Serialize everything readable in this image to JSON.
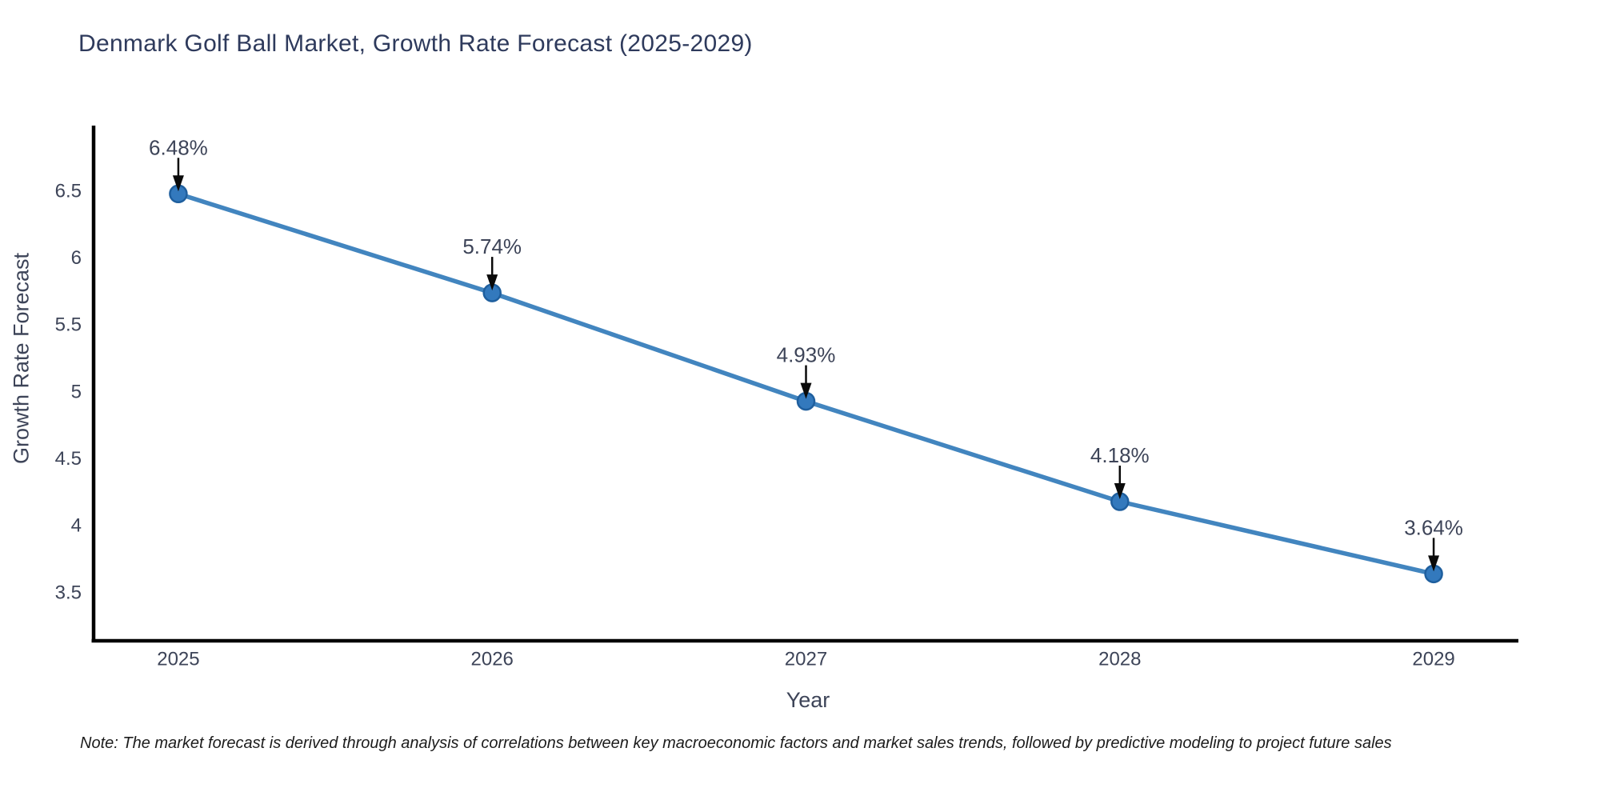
{
  "header": {
    "title": "Denmark Golf Ball Market, Growth Rate Forecast (2025-2029)"
  },
  "footnote": {
    "text": "Note: The market forecast is derived through analysis of correlations between key macroeconomic factors and market sales trends, followed by predictive modeling to project future sales"
  },
  "chart_data": {
    "type": "line",
    "title": "Denmark Golf Ball Market, Growth Rate Forecast (2025-2029)",
    "xlabel": "Year",
    "ylabel": "Growth Rate Forecast",
    "x": [
      2025,
      2026,
      2027,
      2028,
      2029
    ],
    "xtick_labels": [
      "2025",
      "2026",
      "2027",
      "2028",
      "2029"
    ],
    "series": [
      {
        "name": "Growth Rate Forecast",
        "values": [
          6.48,
          5.74,
          4.93,
          4.18,
          3.64
        ]
      }
    ],
    "point_labels": [
      "6.48%",
      "5.74%",
      "4.93%",
      "4.18%",
      "3.64%"
    ],
    "yticks": [
      3.5,
      4,
      4.5,
      5,
      5.5,
      6,
      6.5
    ],
    "ytick_labels": [
      "3.5",
      "4",
      "4.5",
      "5",
      "5.5",
      "6",
      "6.5"
    ],
    "xlim": [
      2024.73,
      2029.27
    ],
    "ylim": [
      3.14,
      6.99
    ],
    "grid": false,
    "legend": "none",
    "marker": "circle",
    "annotation_style": "value label above each point with downward black arrow",
    "colors": {
      "line": "#4285bf",
      "marker_fill": "#3379bd",
      "marker_edge": "#1f5f9e",
      "arrow": "#0a0a0a",
      "axis_spine": "#000000",
      "tick_label": "#3d4458",
      "title": "#2e3a5c"
    }
  }
}
